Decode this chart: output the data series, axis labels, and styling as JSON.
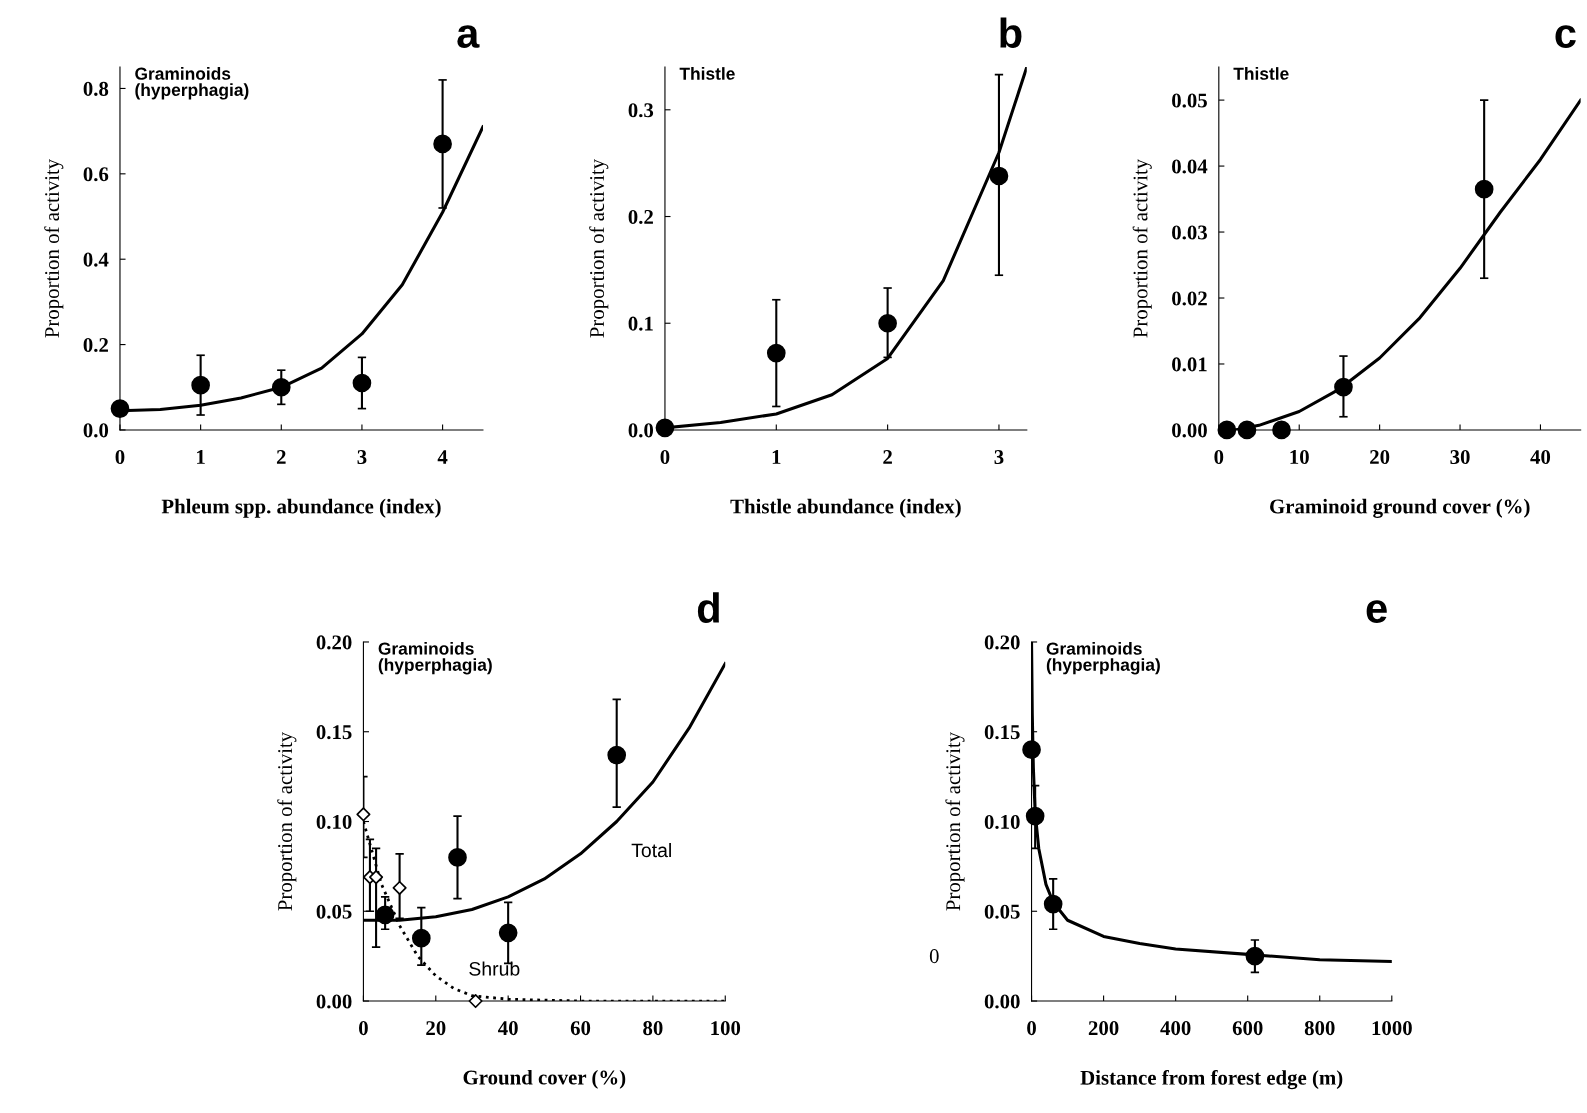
{
  "chart_data": [
    {
      "type": "scatter",
      "title": "a",
      "subtitle": "Graminoids\n(hyperphagia)",
      "xlabel": "Phleum spp. abundance (index)",
      "ylabel": "Proportion of activity",
      "xlim": [
        0,
        4.5
      ],
      "ylim": [
        0,
        0.85
      ],
      "xticks": [
        0,
        1,
        2,
        3,
        4
      ],
      "yticks": [
        {
          "value": 0,
          "label": "0.0"
        },
        0.2,
        0.4,
        0.6,
        0.8
      ],
      "grid": false,
      "legend": false,
      "series": [
        {
          "marker": "circle",
          "color": "#000000",
          "x": [
            0,
            1,
            2,
            3,
            4
          ],
          "values": [
            0.05,
            0.105,
            0.1,
            0.11,
            0.67
          ],
          "errors": [
            null,
            [
              0.035,
              0.175
            ],
            [
              0.06,
              0.14
            ],
            [
              0.05,
              0.17
            ],
            [
              0.52,
              0.82
            ]
          ]
        },
        {
          "type": "line",
          "marker": "none",
          "color": "#000000",
          "line_style": "solid",
          "x": [
            0,
            0.5,
            1,
            1.5,
            2,
            2.5,
            3,
            3.5,
            4,
            4.5
          ],
          "values": [
            0.045,
            0.048,
            0.058,
            0.075,
            0.1,
            0.145,
            0.225,
            0.34,
            0.51,
            0.71
          ]
        }
      ]
    },
    {
      "type": "scatter",
      "title": "b",
      "subtitle": "Thistle",
      "xlabel": "Thistle abundance (index)",
      "ylabel": "Proportion of activity",
      "xlim": [
        0,
        3.25
      ],
      "ylim": [
        0,
        0.34
      ],
      "xticks": [
        0,
        1,
        2,
        3
      ],
      "yticks": [
        {
          "value": 0,
          "label": "0.0"
        },
        0.1,
        0.2,
        0.3
      ],
      "grid": false,
      "legend": false,
      "series": [
        {
          "marker": "circle",
          "color": "#000000",
          "x": [
            0,
            1,
            2,
            3
          ],
          "values": [
            0.002,
            0.072,
            0.1,
            0.238
          ],
          "errors": [
            null,
            [
              0.022,
              0.122
            ],
            [
              0.068,
              0.133
            ],
            [
              0.145,
              0.333
            ]
          ]
        },
        {
          "type": "line",
          "marker": "none",
          "color": "#000000",
          "line_style": "solid",
          "x": [
            0,
            0.5,
            1,
            1.5,
            2,
            2.5,
            3,
            3.25
          ],
          "values": [
            0.002,
            0.007,
            0.015,
            0.033,
            0.067,
            0.14,
            0.26,
            0.34
          ]
        }
      ]
    },
    {
      "type": "scatter",
      "title": "c",
      "subtitle": "Thistle",
      "xlabel": "Graminoid ground cover (%)",
      "ylabel": "Proportion of activity",
      "xlim": [
        0,
        45
      ],
      "ylim": [
        0,
        0.055
      ],
      "xticks": [
        0,
        10,
        20,
        30,
        40
      ],
      "yticks": [
        {
          "value": 0,
          "label": "0.00"
        },
        0.01,
        0.02,
        0.03,
        0.04,
        0.05
      ],
      "grid": false,
      "legend": false,
      "series": [
        {
          "marker": "circle",
          "color": "#000000",
          "x": [
            1,
            3.5,
            7.8,
            15.5,
            33
          ],
          "values": [
            0,
            0,
            0,
            0.0065,
            0.0365
          ],
          "errors": [
            null,
            null,
            null,
            [
              0.002,
              0.0112
            ],
            [
              0.023,
              0.05
            ]
          ]
        },
        {
          "type": "line",
          "marker": "none",
          "color": "#000000",
          "line_style": "solid",
          "x": [
            2,
            5,
            10,
            15,
            20,
            25,
            30,
            35,
            40,
            45
          ],
          "values": [
            0,
            0.0007,
            0.0028,
            0.0062,
            0.0109,
            0.017,
            0.0245,
            0.033,
            0.041,
            0.05
          ]
        }
      ]
    },
    {
      "type": "scatter",
      "title": "d",
      "subtitle": "Graminoids\n(hyperphagia)",
      "xlabel": "Ground cover (%)",
      "ylabel": "Proportion of activity",
      "xlim": [
        0,
        100
      ],
      "ylim": [
        0,
        0.2
      ],
      "xticks": [
        0,
        20,
        40,
        60,
        80,
        100
      ],
      "yticks": [
        {
          "value": 0,
          "label": "0.00"
        },
        0.05,
        {
          "value": 0.1,
          "label": "0.10"
        },
        0.15,
        {
          "value": 0.2,
          "label": "0.20"
        }
      ],
      "grid": false,
      "legend": false,
      "series": [
        {
          "color": "#000000",
          "marker": "circle",
          "x": [
            6,
            16,
            26,
            40,
            70
          ],
          "values": [
            0.048,
            0.035,
            0.08,
            0.038,
            0.137
          ],
          "errors": [
            [
              0.04,
              0.058
            ],
            [
              0.02,
              0.052
            ],
            [
              0.057,
              0.103
            ],
            [
              0.021,
              0.055
            ],
            [
              0.108,
              0.168
            ]
          ]
        },
        {
          "color": "#000000",
          "marker": "diamond",
          "x": [
            0,
            1.8,
            3.5,
            10,
            31
          ],
          "values": [
            0.104,
            0.069,
            0.069,
            0.063,
            0
          ],
          "errors": [
            [
              0.08,
              0.125
            ],
            [
              0.05,
              0.09
            ],
            [
              0.03,
              0.085
            ],
            [
              0.046,
              0.082
            ],
            null
          ]
        },
        {
          "type": "line",
          "marker": "none",
          "name": "Total",
          "color": "#000000",
          "line_style": "solid",
          "x": [
            0,
            10,
            20,
            30,
            40,
            50,
            60,
            70,
            80,
            90,
            100
          ],
          "values": [
            0.045,
            0.045,
            0.047,
            0.051,
            0.058,
            0.068,
            0.082,
            0.1,
            0.122,
            0.152,
            0.188
          ]
        },
        {
          "type": "line",
          "marker": "none",
          "name": "Shrub",
          "color": "#000000",
          "line_style": "dotted",
          "x": [
            0,
            5,
            10,
            15,
            20,
            25,
            30,
            40,
            60,
            100
          ],
          "values": [
            0.1,
            0.065,
            0.042,
            0.025,
            0.014,
            0.007,
            0.003,
            0.001,
            0,
            0
          ]
        }
      ]
    },
    {
      "type": "scatter",
      "title": "e",
      "subtitle": "Graminoids\n(hyperphagia)",
      "xlabel": "Distance from forest edge (m)",
      "ylabel": "Proportion of activity",
      "xlim": [
        0,
        1000
      ],
      "ylim": [
        0,
        0.2
      ],
      "xticks": [
        0,
        200,
        400,
        600,
        800,
        1000
      ],
      "yticks": [
        {
          "value": 0,
          "label": "0.00"
        },
        0.05,
        {
          "value": 0.1,
          "label": "0.10"
        },
        0.15,
        {
          "value": 0.2,
          "label": "0.20"
        }
      ],
      "grid": false,
      "legend": false,
      "annotations": [
        "0"
      ],
      "series": [
        {
          "marker": "circle",
          "color": "#000000",
          "x": [
            0,
            10,
            60,
            620
          ],
          "values": [
            0.14,
            0.103,
            0.054,
            0.025
          ],
          "errors": [
            null,
            [
              0.085,
              0.12
            ],
            [
              0.04,
              0.068
            ],
            [
              0.016,
              0.034
            ]
          ]
        },
        {
          "type": "line",
          "marker": "none",
          "color": "#000000",
          "line_style": "solid",
          "x": [
            0,
            2,
            5,
            10,
            20,
            40,
            60,
            100,
            200,
            300,
            400,
            600,
            800,
            1000
          ],
          "values": [
            0.2,
            0.16,
            0.13,
            0.105,
            0.085,
            0.065,
            0.055,
            0.045,
            0.036,
            0.032,
            0.029,
            0.026,
            0.023,
            0.022
          ]
        }
      ]
    }
  ]
}
